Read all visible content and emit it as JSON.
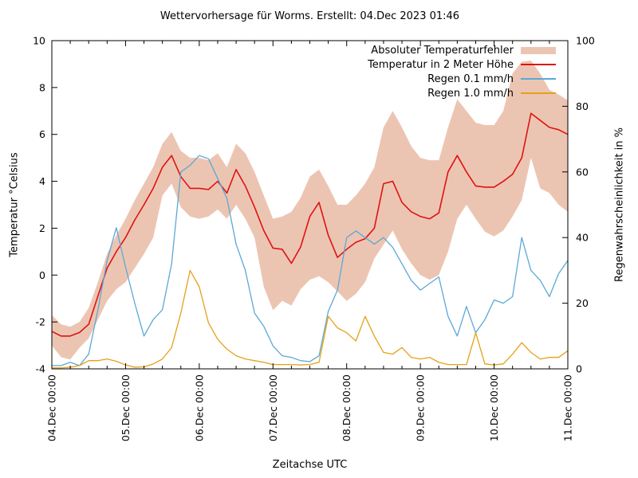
{
  "title": "Wettervorhersage für Worms. Erstellt: 04.Dec 2023 01:46",
  "chart_data": {
    "type": "line",
    "title": "Wettervorhersage für Worms. Erstellt: 04.Dec 2023 01:46",
    "xlabel": "Zeitachse UTC",
    "ylabel_left": "Temperatur °Celsius",
    "ylabel_right": "Regenwahrscheinlichkeit in %",
    "x_unit": "hours since 04.Dec 2023 00:00 UTC",
    "x_step_hours": 3,
    "x_range_hours": [
      0,
      168
    ],
    "x_major_tick_hours": 24,
    "x_minor_tick_hours": 6,
    "x_tick_labels": [
      "04.Dec 00:00",
      "05.Dec 00:00",
      "06.Dec 00:00",
      "07.Dec 00:00",
      "08.Dec 00:00",
      "09.Dec 00:00",
      "10.Dec 00:00",
      "11.Dec 00:00"
    ],
    "ylim_left": [
      -4,
      10
    ],
    "yticks_left": [
      -4,
      -2,
      0,
      2,
      4,
      6,
      8,
      10
    ],
    "ylim_right": [
      0,
      100
    ],
    "yticks_right": [
      0,
      20,
      40,
      60,
      80,
      100
    ],
    "grid": false,
    "legend_position": "top-right-inside",
    "background": "#ffffff",
    "axis_color": "#000000",
    "series": [
      {
        "name": "Absoluter Temperaturfehler",
        "type": "band",
        "axis": "left",
        "color": "#ecc5b2",
        "upper": [
          -1.7,
          -2.1,
          -2.2,
          -2.0,
          -1.4,
          -0.3,
          0.9,
          1.7,
          2.4,
          3.2,
          3.9,
          4.6,
          5.6,
          6.1,
          5.3,
          5.0,
          5.0,
          4.9,
          5.2,
          4.6,
          5.6,
          5.2,
          4.4,
          3.4,
          2.4,
          2.5,
          2.7,
          3.3,
          4.2,
          4.5,
          3.8,
          3.0,
          3.0,
          3.4,
          3.9,
          4.6,
          6.3,
          7.0,
          6.3,
          5.5,
          5.0,
          4.9,
          4.9,
          6.3,
          7.5,
          7.0,
          6.5,
          6.4,
          6.4,
          7.0,
          8.6,
          9.1,
          9.15,
          8.6,
          7.9,
          7.7,
          7.45
        ],
        "lower": [
          -3.0,
          -3.5,
          -3.6,
          -3.1,
          -2.7,
          -1.9,
          -1.1,
          -0.6,
          -0.3,
          0.3,
          0.9,
          1.6,
          3.4,
          3.9,
          2.9,
          2.5,
          2.4,
          2.5,
          2.8,
          2.4,
          3.0,
          2.4,
          1.6,
          -0.5,
          -1.5,
          -1.1,
          -1.3,
          -0.6,
          -0.2,
          -0.05,
          -0.3,
          -0.7,
          -1.1,
          -0.8,
          -0.3,
          0.7,
          1.3,
          1.9,
          1.1,
          0.5,
          0.0,
          -0.2,
          0.0,
          1.0,
          2.4,
          3.0,
          2.4,
          1.85,
          1.65,
          1.9,
          2.5,
          3.2,
          5.0,
          3.7,
          3.5,
          3.0,
          2.7
        ]
      },
      {
        "name": "Temperatur in 2 Meter Höhe",
        "type": "line",
        "axis": "left",
        "color": "#e01212",
        "values": [
          -2.4,
          -2.6,
          -2.6,
          -2.45,
          -2.1,
          -0.9,
          0.3,
          1.0,
          1.6,
          2.35,
          3.0,
          3.7,
          4.6,
          5.1,
          4.2,
          3.7,
          3.7,
          3.65,
          4.0,
          3.5,
          4.5,
          3.8,
          2.9,
          1.9,
          1.15,
          1.1,
          0.5,
          1.2,
          2.5,
          3.1,
          1.7,
          0.75,
          1.1,
          1.4,
          1.55,
          2.0,
          3.9,
          4.0,
          3.1,
          2.7,
          2.5,
          2.4,
          2.65,
          4.4,
          5.1,
          4.4,
          3.8,
          3.75,
          3.75,
          4.0,
          4.3,
          5.0,
          6.9,
          6.6,
          6.3,
          6.2,
          6.0
        ]
      },
      {
        "name": "Regen 0.1 mm/h",
        "type": "line",
        "axis": "right",
        "color": "#5ba8d8",
        "values": [
          1,
          1,
          2,
          1,
          4.5,
          18,
          33,
          43,
          31,
          20,
          10,
          15,
          18,
          32,
          60,
          62,
          65,
          64,
          58,
          52,
          38,
          30,
          17,
          13,
          7,
          4,
          3.5,
          2.5,
          2.2,
          4,
          17.5,
          24,
          40,
          42,
          40,
          38,
          40,
          37,
          32,
          27,
          24,
          26,
          28,
          16,
          10,
          19,
          11,
          15,
          21,
          20,
          22,
          40,
          30,
          27,
          22,
          29,
          33
        ]
      },
      {
        "name": "Regen 1.0 mm/h",
        "type": "line",
        "axis": "right",
        "color": "#e6a117",
        "values": [
          0.3,
          0.3,
          0.5,
          1.0,
          2.5,
          2.5,
          3,
          2.3,
          1.2,
          0.5,
          0.6,
          1.5,
          3,
          6.5,
          17,
          30,
          25,
          14,
          9,
          6,
          4,
          3,
          2.5,
          2,
          1.3,
          1.3,
          1.3,
          1.2,
          1.3,
          2,
          16,
          12.5,
          11,
          8.5,
          16,
          10,
          5,
          4.5,
          6.5,
          3.5,
          3,
          3.5,
          2,
          1.3,
          1.3,
          1.3,
          11,
          1.5,
          1.2,
          1.5,
          4.5,
          8,
          5,
          3,
          3.5,
          3.5,
          5.5
        ]
      }
    ]
  }
}
